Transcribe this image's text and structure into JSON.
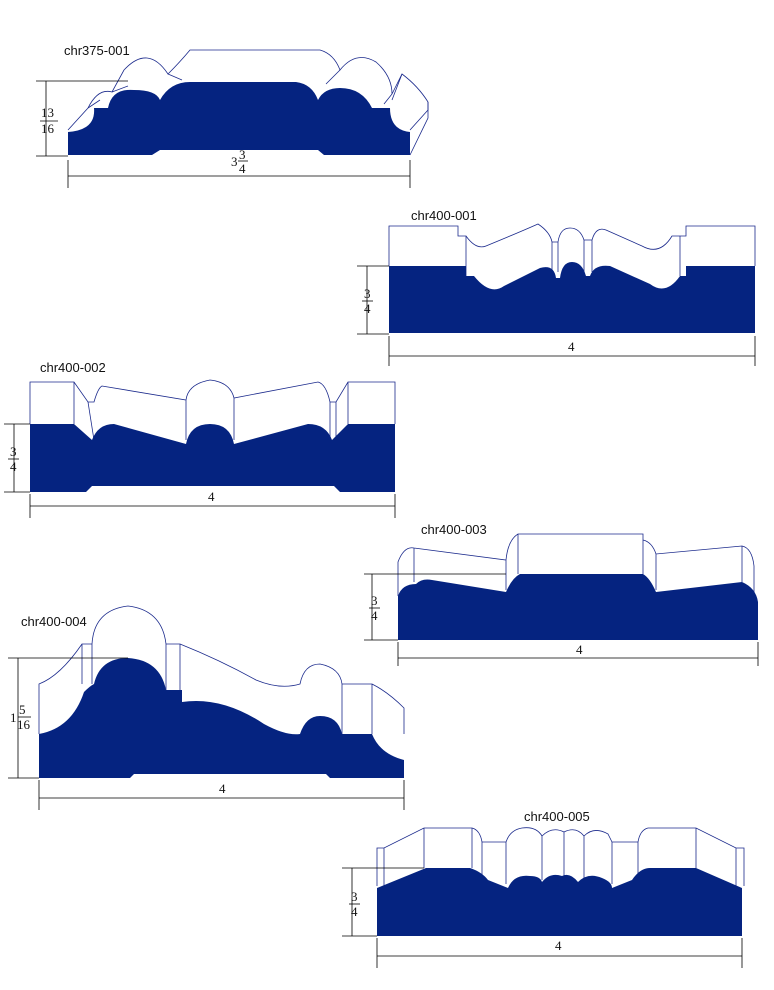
{
  "colors": {
    "profile_fill": "#052380",
    "outline": "#1b2a8c",
    "dimension": "#000000"
  },
  "profiles": [
    {
      "code": "chr375-001",
      "height": {
        "whole": "",
        "num": "13",
        "den": "16"
      },
      "width": {
        "whole": "3",
        "num": "3",
        "den": "4"
      }
    },
    {
      "code": "chr400-001",
      "height": {
        "whole": "",
        "num": "3",
        "den": "4"
      },
      "width": {
        "whole": "4",
        "num": "",
        "den": ""
      }
    },
    {
      "code": "chr400-002",
      "height": {
        "whole": "",
        "num": "3",
        "den": "4"
      },
      "width": {
        "whole": "4",
        "num": "",
        "den": ""
      }
    },
    {
      "code": "chr400-003",
      "height": {
        "whole": "",
        "num": "3",
        "den": "4"
      },
      "width": {
        "whole": "4",
        "num": "",
        "den": ""
      }
    },
    {
      "code": "chr400-004",
      "height": {
        "whole": "1",
        "num": "5",
        "den": "16"
      },
      "width": {
        "whole": "4",
        "num": "",
        "den": ""
      }
    },
    {
      "code": "chr400-005",
      "height": {
        "whole": "",
        "num": "3",
        "den": "4"
      },
      "width": {
        "whole": "4",
        "num": "",
        "den": ""
      }
    }
  ]
}
